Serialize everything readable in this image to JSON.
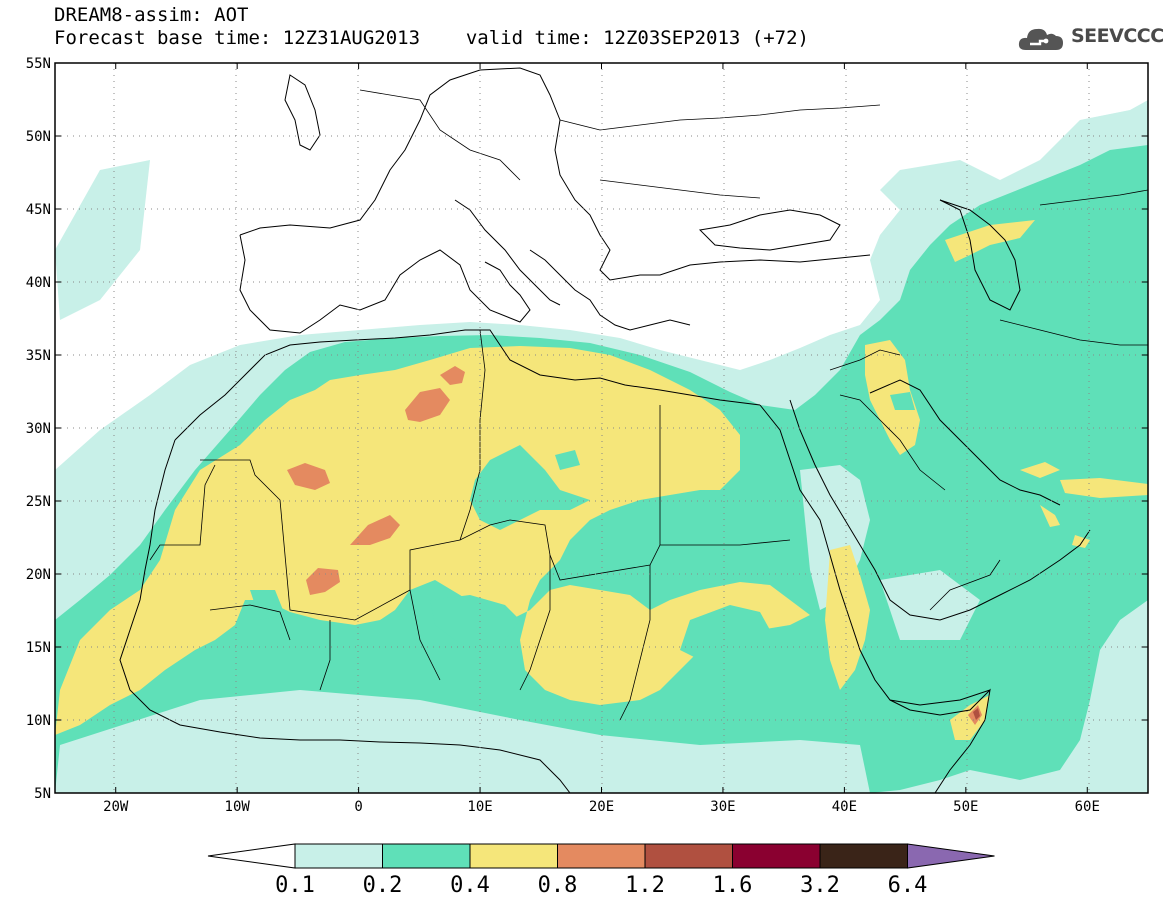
{
  "header": {
    "title": "DREAM8-assim: AOT",
    "base_time_label": "Forecast base time: 12Z31AUG2013",
    "valid_time_label": "valid time: 12Z03SEP2013 (+72)"
  },
  "logo": {
    "text": "SEEVCCC",
    "icon": "cloud-icon"
  },
  "map": {
    "lon_range": [
      -25,
      65
    ],
    "lat_range": [
      5,
      55
    ],
    "x_ticks": [
      {
        "lon": -20,
        "label": "20W"
      },
      {
        "lon": -10,
        "label": "10W"
      },
      {
        "lon": 0,
        "label": "0"
      },
      {
        "lon": 10,
        "label": "10E"
      },
      {
        "lon": 20,
        "label": "20E"
      },
      {
        "lon": 30,
        "label": "30E"
      },
      {
        "lon": 40,
        "label": "40E"
      },
      {
        "lon": 50,
        "label": "50E"
      },
      {
        "lon": 60,
        "label": "60E"
      }
    ],
    "y_ticks": [
      {
        "lat": 5,
        "label": "5N"
      },
      {
        "lat": 10,
        "label": "10N"
      },
      {
        "lat": 15,
        "label": "15N"
      },
      {
        "lat": 20,
        "label": "20N"
      },
      {
        "lat": 25,
        "label": "25N"
      },
      {
        "lat": 30,
        "label": "30N"
      },
      {
        "lat": 35,
        "label": "35N"
      },
      {
        "lat": 40,
        "label": "40N"
      },
      {
        "lat": 45,
        "label": "45N"
      },
      {
        "lat": 50,
        "label": "50N"
      },
      {
        "lat": 55,
        "label": "55N"
      }
    ],
    "grid": "dotted"
  },
  "legend": {
    "levels": [
      "0.1",
      "0.2",
      "0.4",
      "0.8",
      "1.2",
      "1.6",
      "3.2",
      "6.4"
    ],
    "colors": [
      "#ffffff",
      "#c8f0e8",
      "#5fe0b8",
      "#f5e67a",
      "#e48a60",
      "#b05040",
      "#8a0030",
      "#3a2418",
      "#8a68b0"
    ]
  }
}
